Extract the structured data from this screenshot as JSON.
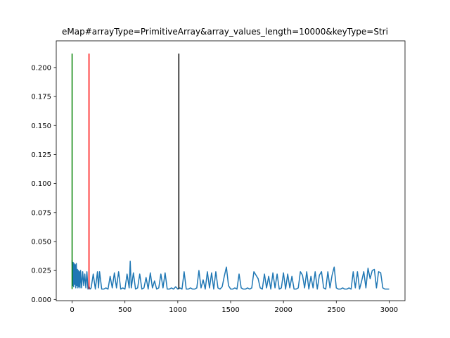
{
  "chart_data": {
    "type": "line",
    "title": "eMap#arrayType=PrimitiveArray&array_values_length=10000&keyType=Stri",
    "xlabel": "",
    "ylabel": "",
    "xlim": [
      -150,
      3150
    ],
    "ylim": [
      -0.001,
      0.223
    ],
    "x_ticks": [
      0,
      500,
      1000,
      1500,
      2000,
      2500,
      3000
    ],
    "y_ticks": [
      0.0,
      0.025,
      0.05,
      0.075,
      0.1,
      0.125,
      0.15,
      0.175,
      0.2
    ],
    "x_tick_labels": [
      "0",
      "500",
      "1000",
      "1500",
      "2000",
      "2500",
      "3000"
    ],
    "y_tick_labels": [
      "0.000",
      "0.025",
      "0.050",
      "0.075",
      "0.100",
      "0.125",
      "0.150",
      "0.175",
      "0.200"
    ],
    "grid": false,
    "series": [
      {
        "color": "#1f77b4",
        "x": [
          0,
          5,
          10,
          15,
          20,
          25,
          30,
          35,
          40,
          45,
          50,
          55,
          60,
          65,
          70,
          75,
          80,
          90,
          100,
          110,
          120,
          130,
          140,
          150,
          160,
          170,
          180,
          200,
          220,
          240,
          250,
          260,
          280,
          300,
          320,
          340,
          360,
          380,
          400,
          420,
          440,
          460,
          480,
          500,
          520,
          540,
          550,
          560,
          580,
          600,
          620,
          640,
          660,
          680,
          700,
          720,
          740,
          760,
          780,
          800,
          820,
          840,
          860,
          880,
          900,
          920,
          940,
          960,
          980,
          1000,
          1020,
          1040,
          1060,
          1080,
          1100,
          1120,
          1140,
          1160,
          1180,
          1200,
          1220,
          1240,
          1260,
          1280,
          1300,
          1320,
          1340,
          1360,
          1380,
          1400,
          1420,
          1440,
          1460,
          1480,
          1500,
          1520,
          1540,
          1560,
          1580,
          1600,
          1620,
          1640,
          1660,
          1680,
          1700,
          1720,
          1740,
          1760,
          1780,
          1800,
          1820,
          1840,
          1860,
          1880,
          1900,
          1920,
          1940,
          1960,
          1980,
          2000,
          2020,
          2040,
          2060,
          2080,
          2100,
          2120,
          2140,
          2160,
          2180,
          2200,
          2220,
          2240,
          2260,
          2280,
          2300,
          2320,
          2340,
          2360,
          2380,
          2400,
          2420,
          2440,
          2460,
          2480,
          2500,
          2520,
          2540,
          2560,
          2580,
          2600,
          2620,
          2640,
          2660,
          2680,
          2700,
          2720,
          2740,
          2760,
          2780,
          2800,
          2820,
          2840,
          2860,
          2880,
          2900,
          2920,
          2940,
          2960,
          2980,
          3000
        ],
        "values": [
          0.034,
          0.012,
          0.032,
          0.011,
          0.031,
          0.013,
          0.03,
          0.01,
          0.031,
          0.012,
          0.026,
          0.01,
          0.025,
          0.011,
          0.024,
          0.01,
          0.025,
          0.01,
          0.024,
          0.012,
          0.022,
          0.01,
          0.024,
          0.009,
          0.011,
          0.009,
          0.01,
          0.022,
          0.009,
          0.024,
          0.01,
          0.024,
          0.009,
          0.009,
          0.01,
          0.009,
          0.02,
          0.01,
          0.023,
          0.01,
          0.024,
          0.009,
          0.01,
          0.009,
          0.022,
          0.01,
          0.033,
          0.01,
          0.023,
          0.009,
          0.01,
          0.022,
          0.009,
          0.01,
          0.019,
          0.009,
          0.023,
          0.01,
          0.016,
          0.009,
          0.01,
          0.022,
          0.01,
          0.023,
          0.009,
          0.009,
          0.01,
          0.009,
          0.011,
          0.009,
          0.01,
          0.009,
          0.024,
          0.009,
          0.009,
          0.01,
          0.009,
          0.009,
          0.01,
          0.025,
          0.01,
          0.017,
          0.009,
          0.024,
          0.01,
          0.023,
          0.009,
          0.024,
          0.01,
          0.009,
          0.011,
          0.02,
          0.028,
          0.012,
          0.009,
          0.009,
          0.01,
          0.009,
          0.022,
          0.01,
          0.009,
          0.009,
          0.01,
          0.009,
          0.01,
          0.024,
          0.021,
          0.018,
          0.01,
          0.009,
          0.022,
          0.01,
          0.02,
          0.009,
          0.023,
          0.01,
          0.022,
          0.009,
          0.01,
          0.023,
          0.009,
          0.022,
          0.01,
          0.02,
          0.009,
          0.009,
          0.01,
          0.024,
          0.021,
          0.01,
          0.024,
          0.009,
          0.02,
          0.01,
          0.024,
          0.009,
          0.021,
          0.024,
          0.01,
          0.009,
          0.024,
          0.01,
          0.021,
          0.028,
          0.01,
          0.009,
          0.009,
          0.01,
          0.009,
          0.009,
          0.01,
          0.009,
          0.024,
          0.01,
          0.024,
          0.009,
          0.016,
          0.024,
          0.01,
          0.027,
          0.018,
          0.025,
          0.026,
          0.01,
          0.024,
          0.023,
          0.01,
          0.009,
          0.009,
          0.009
        ]
      }
    ],
    "vlines": [
      {
        "x": 0,
        "ymin": 0.009,
        "ymax": 0.212,
        "color": "#008000"
      },
      {
        "x": 160,
        "ymin": 0.009,
        "ymax": 0.212,
        "color": "#ff0000"
      },
      {
        "x": 1010,
        "ymin": 0.009,
        "ymax": 0.212,
        "color": "#000000"
      }
    ]
  }
}
